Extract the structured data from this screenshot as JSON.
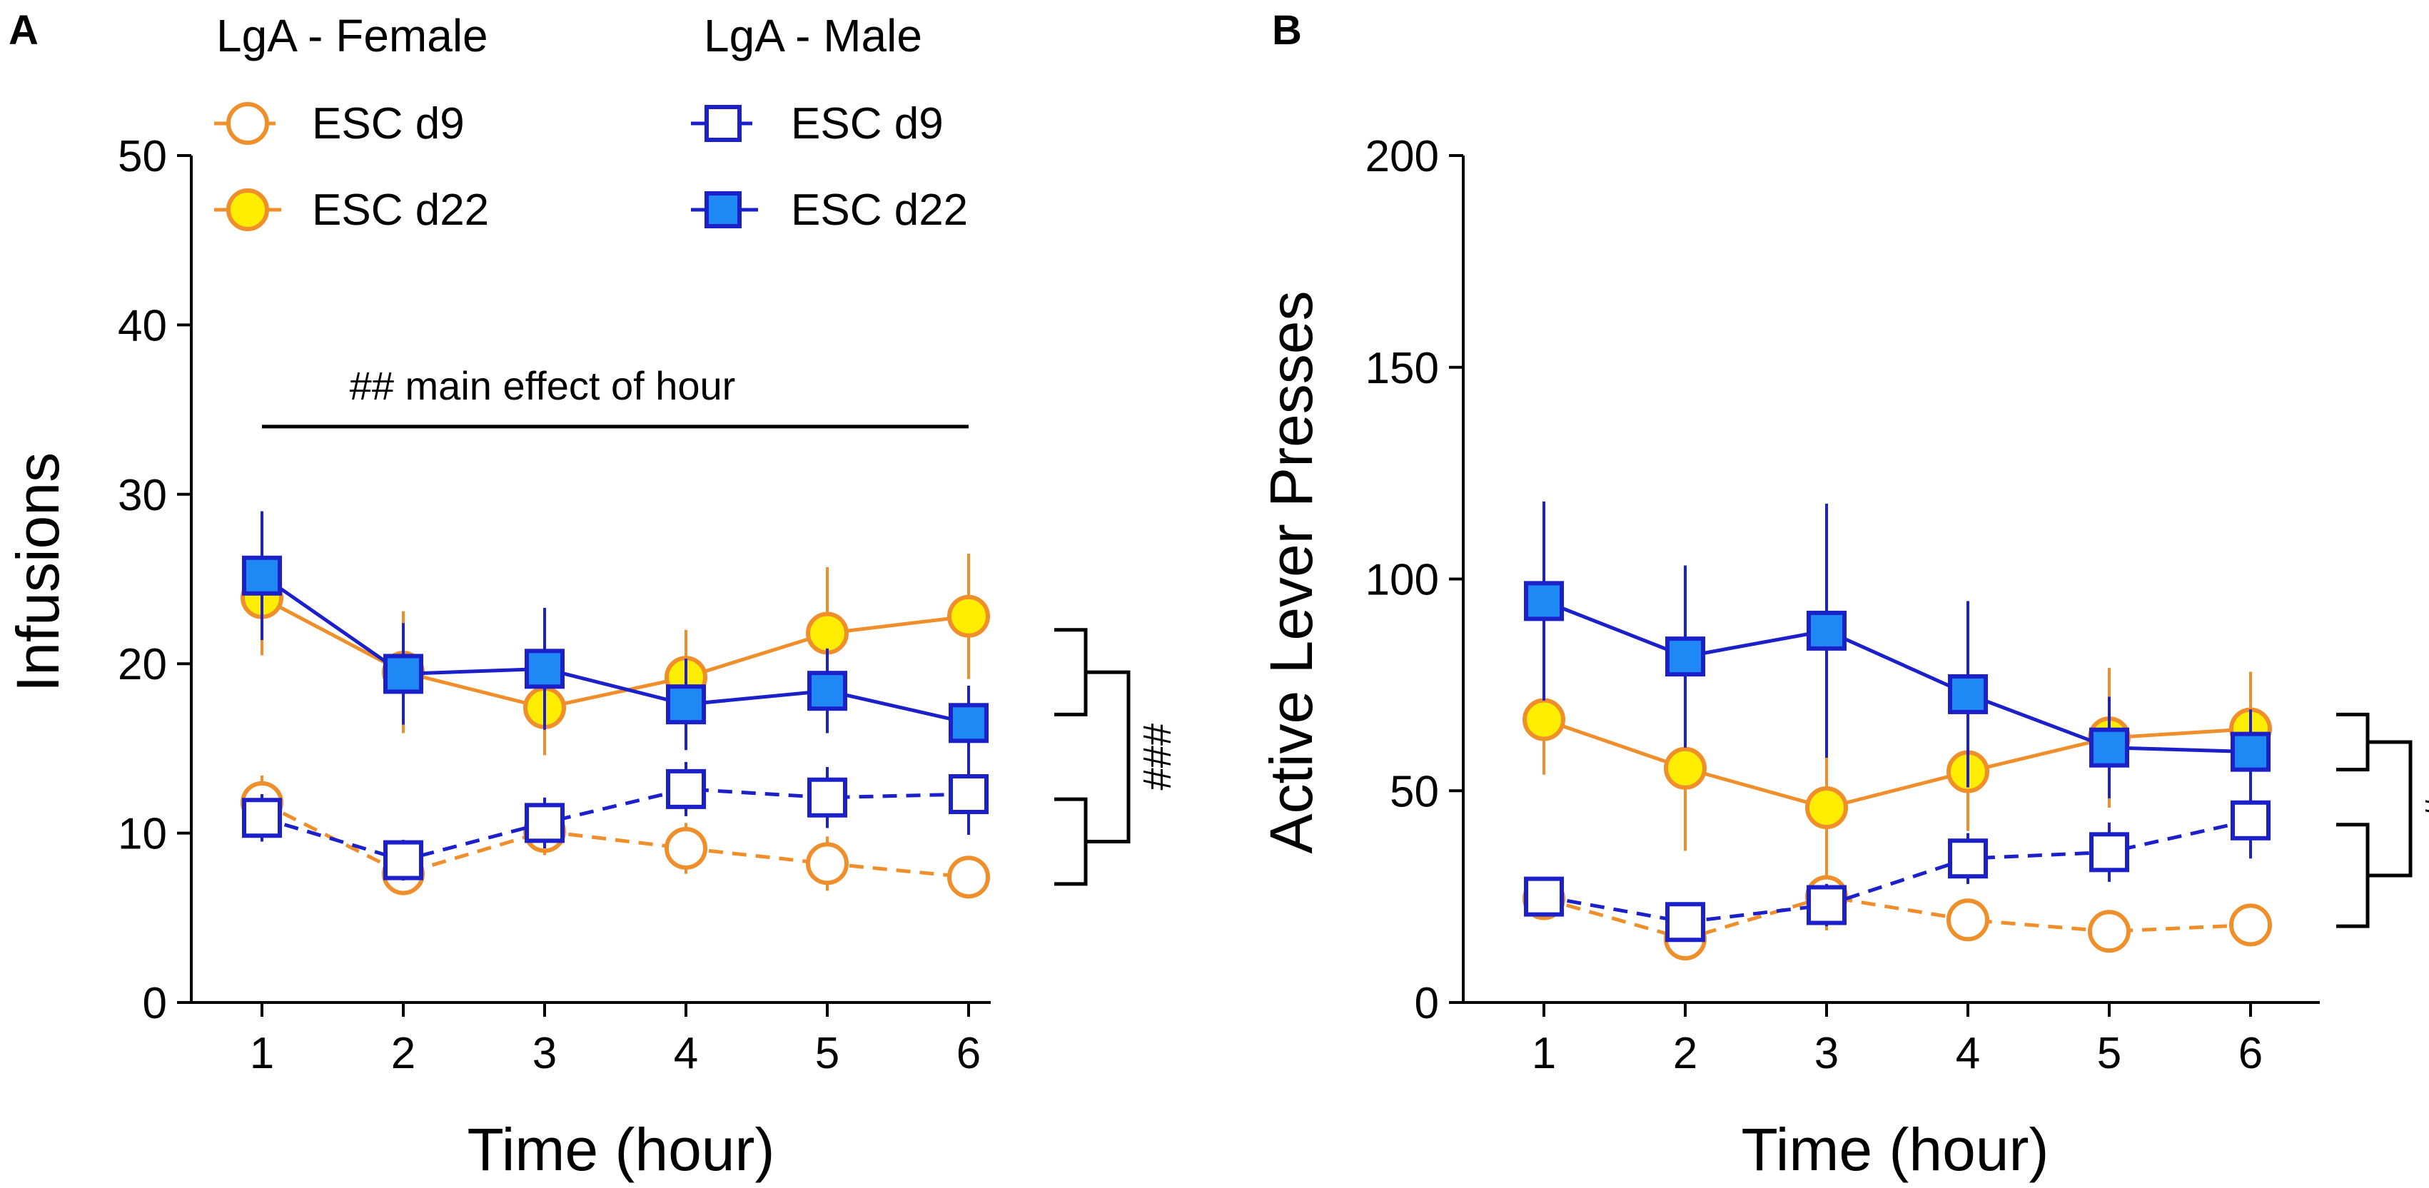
{
  "colors": {
    "female": "#ef8f2b",
    "female_fill": "#ffed00",
    "male": "#1b20c9",
    "male_fill": "#1e88f5",
    "axis": "#000000"
  },
  "legend": {
    "female_title": "LgA - Female",
    "male_title": "LgA - Male",
    "entries": [
      {
        "sex": "female",
        "label": "ESC d9",
        "marker": "circle-open-icon",
        "dashed": true
      },
      {
        "sex": "female",
        "label": "ESC d22",
        "marker": "circle-filled-icon",
        "dashed": false
      },
      {
        "sex": "male",
        "label": "ESC d9",
        "marker": "square-open-icon",
        "dashed": true
      },
      {
        "sex": "male",
        "label": "ESC d22",
        "marker": "square-filled-icon",
        "dashed": false
      }
    ]
  },
  "chart_data": [
    {
      "panel": "A",
      "type": "line",
      "title": "",
      "xlabel": "Time (hour)",
      "ylabel": "Infusions",
      "x": [
        1,
        2,
        3,
        4,
        5,
        6
      ],
      "xlim": [
        0.5,
        6.5
      ],
      "ylim": [
        0,
        50
      ],
      "yticks": [
        0,
        10,
        20,
        30,
        40,
        50
      ],
      "series": [
        {
          "name": "LgA - Female ESC d9",
          "sex": "female",
          "stage": "d9",
          "values": [
            11.8,
            7.6,
            10.1,
            9.1,
            8.2,
            7.4
          ],
          "err": [
            1.6,
            1.2,
            1.4,
            1.5,
            1.6,
            1.2
          ]
        },
        {
          "name": "LgA - Female ESC d22",
          "sex": "female",
          "stage": "d22",
          "values": [
            23.9,
            19.5,
            17.4,
            19.2,
            21.8,
            22.8
          ],
          "err": [
            3.4,
            3.6,
            2.8,
            2.8,
            3.9,
            3.7
          ]
        },
        {
          "name": "LgA - Male ESC d9",
          "sex": "male",
          "stage": "d9",
          "values": [
            10.9,
            8.4,
            10.6,
            12.6,
            12.1,
            12.3
          ],
          "err": [
            1.4,
            1.2,
            1.5,
            1.6,
            1.8,
            2.4
          ]
        },
        {
          "name": "LgA - Male ESC d22",
          "sex": "male",
          "stage": "d22",
          "values": [
            25.2,
            19.4,
            19.7,
            17.6,
            18.4,
            16.5
          ],
          "err": [
            3.8,
            3.0,
            3.6,
            2.7,
            2.5,
            2.2
          ]
        }
      ],
      "annotations": [
        {
          "kind": "line",
          "text": "## main effect of hour",
          "x_start": 1,
          "x_end": 6,
          "y": 34
        },
        {
          "kind": "bracket",
          "text": "###",
          "upper_range": [
            17,
            22
          ],
          "lower_range": [
            7,
            12
          ]
        }
      ]
    },
    {
      "panel": "B",
      "type": "line",
      "title": "",
      "xlabel": "Time (hour)",
      "ylabel": "Active Lever Presses",
      "x": [
        1,
        2,
        3,
        4,
        5,
        6
      ],
      "xlim": [
        0.5,
        6.5
      ],
      "ylim": [
        0,
        200
      ],
      "yticks": [
        0,
        50,
        100,
        150,
        200
      ],
      "series": [
        {
          "name": "LgA - Female ESC d9",
          "sex": "female",
          "stage": "d9",
          "values": [
            24.5,
            15.0,
            25.0,
            19.5,
            16.8,
            18.3
          ],
          "err": [
            3.5,
            3.0,
            8.0,
            3.5,
            3.0,
            5.0
          ]
        },
        {
          "name": "LgA - Female ESC d22",
          "sex": "female",
          "stage": "d22",
          "values": [
            66.8,
            55.3,
            46.0,
            54.5,
            62.5,
            64.6
          ],
          "err": [
            13.0,
            19.5,
            15.0,
            14.0,
            16.5,
            13.5
          ]
        },
        {
          "name": "LgA - Male ESC d9",
          "sex": "male",
          "stage": "d9",
          "values": [
            25.0,
            19.0,
            23.0,
            34.0,
            35.5,
            43.0
          ],
          "err": [
            3.0,
            3.5,
            5.0,
            6.0,
            7.0,
            9.0
          ]
        },
        {
          "name": "LgA - Male ESC d22",
          "sex": "male",
          "stage": "d22",
          "values": [
            94.8,
            81.7,
            87.8,
            72.8,
            60.2,
            59.2
          ],
          "err": [
            23.5,
            21.5,
            30.0,
            22.0,
            12.0,
            10.0
          ]
        }
      ],
      "annotations": [
        {
          "kind": "bracket",
          "text": "#",
          "upper_range": [
            55,
            68
          ],
          "lower_range": [
            18,
            42
          ]
        }
      ]
    }
  ]
}
